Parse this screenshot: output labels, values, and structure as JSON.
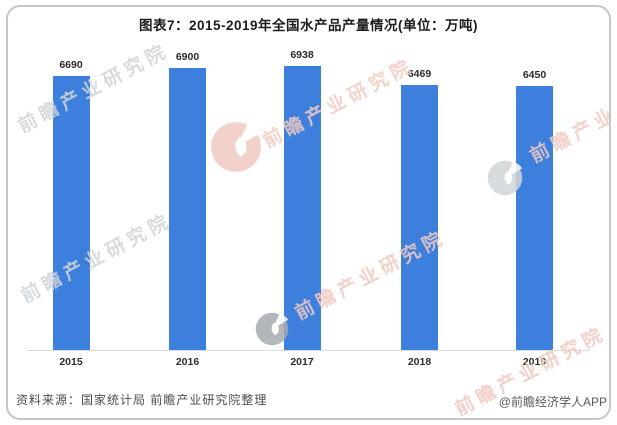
{
  "title": "图表7：2015-2019年全国水产品产量情况(单位：万吨)",
  "chart_data": {
    "type": "bar",
    "title": "图表7：2015-2019年全国水产品产量情况",
    "unit_label": "单位：万吨",
    "categories": [
      "2015",
      "2016",
      "2017",
      "2018",
      "2019"
    ],
    "values": [
      6690,
      6900,
      6938,
      6469,
      6450
    ],
    "value_labels_shown": true,
    "ylim": [
      0,
      7000
    ],
    "grid": false,
    "legend": false,
    "bar_color": "#3d7fdc",
    "axis_line_color": "#dcdcdc"
  },
  "footer": {
    "source": "资料来源：国家统计局 前瞻产业研究院整理",
    "credit": "@前瞻经济学人APP"
  },
  "watermark": {
    "text": "前瞻产业研究院",
    "colors": {
      "gray": "#d2d5d8",
      "pink": "#f1cac3",
      "dark_gray": "#a6abb1"
    }
  }
}
